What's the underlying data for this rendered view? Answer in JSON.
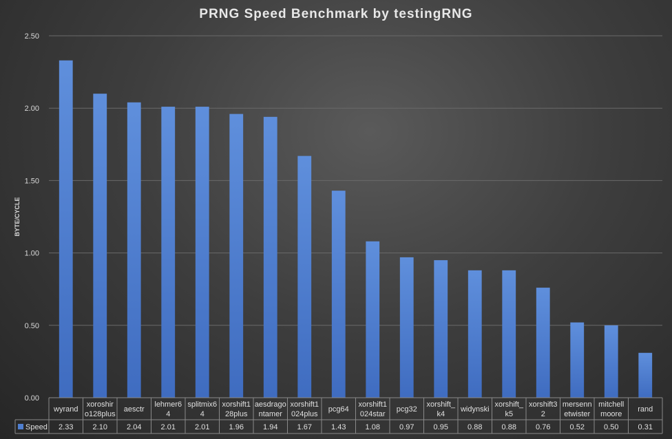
{
  "chart_data": {
    "type": "bar",
    "title": "PRNG Speed Benchmark  by testingRNG",
    "ylabel": "BYTE/CYCLE",
    "xlabel": "",
    "ylim": [
      0,
      2.5
    ],
    "yticks": [
      "0.00",
      "0.50",
      "1.00",
      "1.50",
      "2.00",
      "2.50"
    ],
    "grid": true,
    "data_table": true,
    "categories": [
      [
        "wyrand"
      ],
      [
        "xoroshir",
        "o128plus"
      ],
      [
        "aesctr"
      ],
      [
        "lehmer6",
        "4"
      ],
      [
        "splitmix6",
        "4"
      ],
      [
        "xorshift1",
        "28plus"
      ],
      [
        "aesdrago",
        "ntamer"
      ],
      [
        "xorshift1",
        "024plus"
      ],
      [
        "pcg64"
      ],
      [
        "xorshift1",
        "024star"
      ],
      [
        "pcg32"
      ],
      [
        "xorshift_",
        "k4"
      ],
      [
        "widynski"
      ],
      [
        "xorshift_",
        "k5"
      ],
      [
        "xorshift3",
        "2"
      ],
      [
        "mersenn",
        "etwister"
      ],
      [
        "mitchell",
        "moore"
      ],
      [
        "rand"
      ]
    ],
    "series": [
      {
        "name": "Speed",
        "color": "#4f7fd0",
        "values": [
          2.33,
          2.1,
          2.04,
          2.01,
          2.01,
          1.96,
          1.94,
          1.67,
          1.43,
          1.08,
          0.97,
          0.95,
          0.88,
          0.88,
          0.76,
          0.52,
          0.5,
          0.31
        ],
        "labels": [
          "2.33",
          "2.10",
          "2.04",
          "2.01",
          "2.01",
          "1.96",
          "1.94",
          "1.67",
          "1.43",
          "1.08",
          "0.97",
          "0.95",
          "0.88",
          "0.88",
          "0.76",
          "0.52",
          "0.50",
          "0.31"
        ]
      }
    ]
  }
}
